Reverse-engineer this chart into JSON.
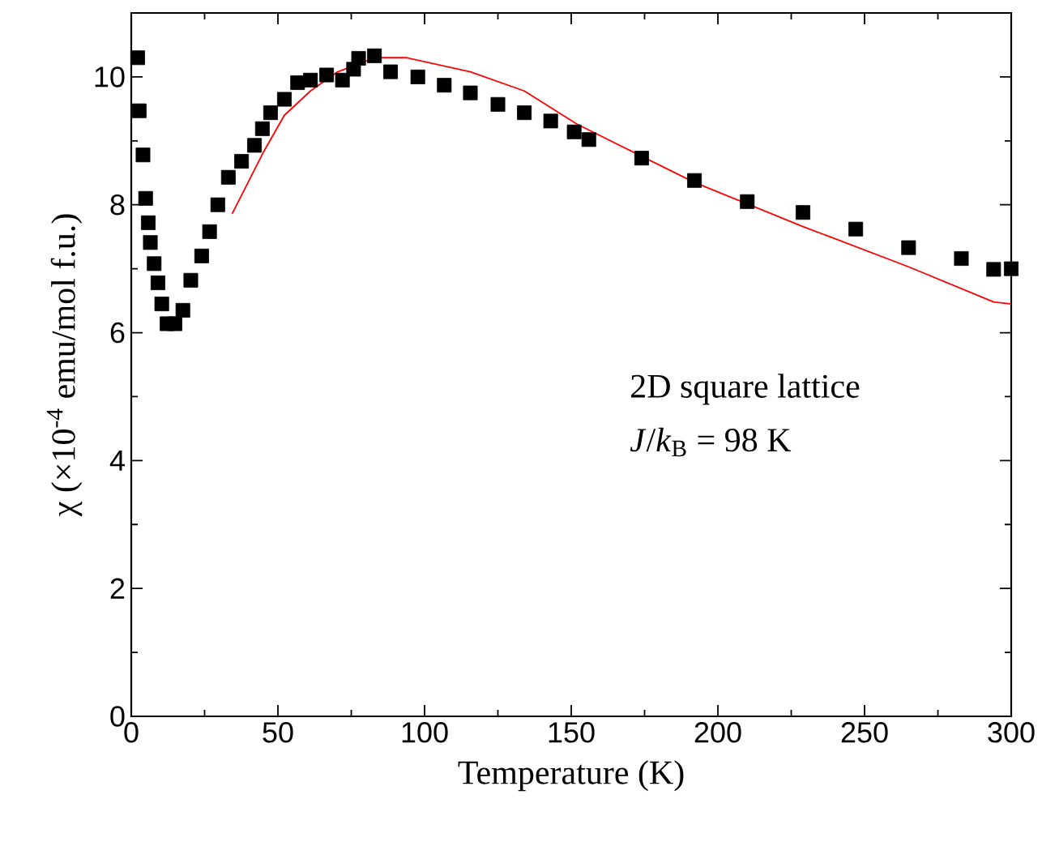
{
  "chart_data": {
    "type": "scatter",
    "xlabel": "Temperature (K)",
    "ylabel": "χ (×10$^{-4}$ emu/mol f.u.)",
    "xlim": [
      0,
      300
    ],
    "ylim": [
      0,
      11
    ],
    "xticks": [
      0,
      50,
      100,
      150,
      200,
      250,
      300
    ],
    "yticks": [
      0,
      2,
      4,
      6,
      8,
      10
    ],
    "annotations": [
      "2D square lattice",
      "*J*/*k*$_{B}$ = 98 K"
    ],
    "grid": false,
    "series": [
      {
        "color": "#000000",
        "marker": "square",
        "x": [
          2.2,
          2.7,
          4,
          4.9,
          5.8,
          6.5,
          7.8,
          9.1,
          10.4,
          12.2,
          14.9,
          17.6,
          20.3,
          24,
          26.7,
          29.5,
          33.1,
          37.6,
          42,
          44.7,
          47.5,
          52.2,
          56.7,
          61.1,
          66.6,
          72,
          75.8,
          77.5,
          82.9,
          88.4,
          97.7,
          106.7,
          115.6,
          125,
          134,
          143,
          151,
          156,
          174,
          192,
          210,
          229,
          247,
          265,
          283,
          294,
          300
        ],
        "values": [
          10.3,
          9.47,
          8.78,
          8.1,
          7.72,
          7.41,
          7.08,
          6.78,
          6.45,
          6.14,
          6.14,
          6.35,
          6.82,
          7.2,
          7.58,
          8.0,
          8.43,
          8.68,
          8.93,
          9.19,
          9.44,
          9.65,
          9.91,
          9.95,
          10.03,
          9.95,
          10.12,
          10.29,
          10.33,
          10.08,
          10.0,
          9.87,
          9.75,
          9.57,
          9.44,
          9.31,
          9.14,
          9.02,
          8.73,
          8.38,
          8.05,
          7.88,
          7.62,
          7.33,
          7.16,
          6.99,
          7.0
        ]
      },
      {
        "type": "line",
        "color": "#ff0000",
        "marker": "none",
        "line_style": "solid",
        "x": [
          34.4,
          44.9,
          52.2,
          61.1,
          70.4,
          83.1,
          93.8,
          115.6,
          134,
          152,
          192,
          229,
          265,
          294,
          300
        ],
        "values": [
          7.86,
          8.81,
          9.4,
          9.78,
          10.08,
          10.3,
          10.3,
          10.08,
          9.78,
          9.26,
          8.35,
          7.66,
          7.03,
          6.48,
          6.45
        ]
      }
    ]
  }
}
